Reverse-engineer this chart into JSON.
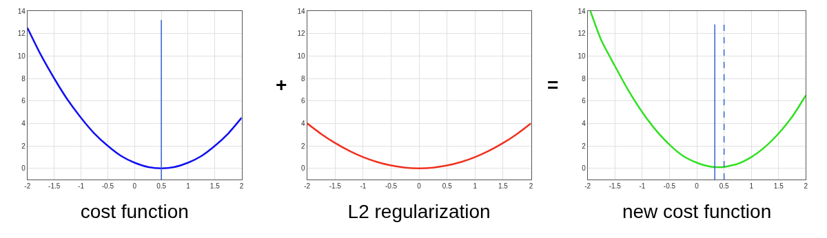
{
  "chart_data": [
    {
      "type": "line",
      "xlabel": "cost function",
      "xlim": [
        -2,
        2
      ],
      "ylim": [
        -1,
        14
      ],
      "xticks": [
        -2,
        -1.5,
        -1,
        -0.5,
        0,
        0.5,
        1,
        1.5,
        2
      ],
      "yticks": [
        0,
        2,
        4,
        6,
        8,
        10,
        12,
        14
      ],
      "grid": true,
      "marker": "none",
      "annotations": [
        "+"
      ],
      "series": [
        {
          "color": "#1010f0",
          "x": [
            -2,
            -1.75,
            -1.5,
            -1.25,
            -1,
            -0.75,
            -0.5,
            -0.25,
            0,
            0.25,
            0.5,
            0.75,
            1,
            1.25,
            1.5,
            1.75,
            2
          ],
          "values": [
            12.5,
            10.1,
            8,
            6.1,
            4.5,
            3.1,
            2,
            1.1,
            0.5,
            0.12,
            0,
            0.12,
            0.5,
            1.1,
            2,
            3.1,
            4.5
          ]
        },
        {
          "color": "#3060d0",
          "x": [
            0.5,
            0.5
          ],
          "values": [
            -1,
            13.2
          ],
          "line_style": "solid"
        }
      ]
    },
    {
      "type": "line",
      "xlabel": "L2 regularization",
      "xlim": [
        -2,
        2
      ],
      "ylim": [
        -1,
        14
      ],
      "xticks": [
        -2,
        -1.5,
        -1,
        -0.5,
        0,
        0.5,
        1,
        1.5,
        2
      ],
      "yticks": [
        0,
        2,
        4,
        6,
        8,
        10,
        12,
        14
      ],
      "grid": true,
      "marker": "none",
      "annotations": [
        "="
      ],
      "series": [
        {
          "color": "#f03020",
          "x": [
            -2,
            -1.75,
            -1.5,
            -1.25,
            -1,
            -0.75,
            -0.5,
            -0.25,
            0,
            0.25,
            0.5,
            0.75,
            1,
            1.25,
            1.5,
            1.75,
            2
          ],
          "values": [
            4,
            3.06,
            2.25,
            1.56,
            1,
            0.56,
            0.25,
            0.06,
            0,
            0.06,
            0.25,
            0.56,
            1,
            1.56,
            2.25,
            3.06,
            4
          ]
        }
      ]
    },
    {
      "type": "line",
      "xlabel": "new cost function",
      "xlim": [
        -2,
        2
      ],
      "ylim": [
        -1,
        14
      ],
      "xticks": [
        -2,
        -1.5,
        -1,
        -0.5,
        0,
        0.5,
        1,
        1.5,
        2
      ],
      "yticks": [
        0,
        2,
        4,
        6,
        8,
        10,
        12,
        14
      ],
      "grid": true,
      "marker": "none",
      "series": [
        {
          "color": "#30e020",
          "x": [
            -1.95,
            -1.75,
            -1.5,
            -1.25,
            -1,
            -0.75,
            -0.5,
            -0.25,
            0,
            0.25,
            0.4,
            0.5,
            0.75,
            1,
            1.25,
            1.5,
            1.75,
            2
          ],
          "values": [
            14,
            11.4,
            9.1,
            6.9,
            5,
            3.4,
            2.1,
            1.1,
            0.5,
            0.15,
            0.1,
            0.12,
            0.4,
            1,
            1.9,
            3.1,
            4.6,
            6.5
          ]
        },
        {
          "color": "#3060d0",
          "x": [
            0.33,
            0.33
          ],
          "values": [
            -1,
            12.8
          ],
          "line_style": "solid"
        },
        {
          "color": "#3060d0",
          "x": [
            0.5,
            0.5
          ],
          "values": [
            -1,
            12.8
          ],
          "line_style": "dashed"
        }
      ]
    }
  ]
}
